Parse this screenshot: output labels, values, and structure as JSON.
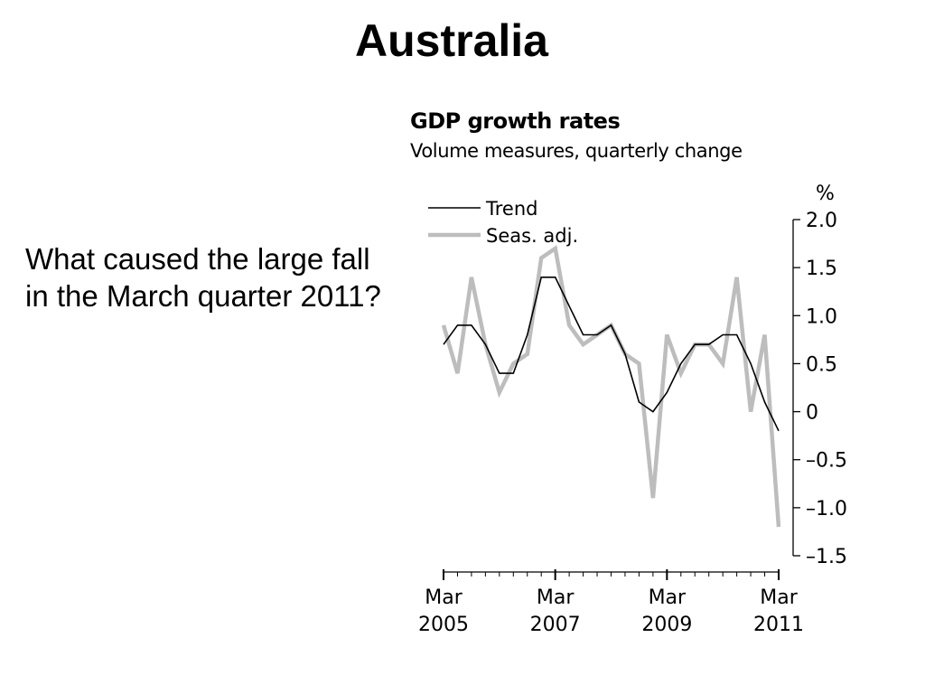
{
  "slide": {
    "title": "Australia",
    "question": "What caused the large fall in the March quarter 2011?"
  },
  "chart_data": {
    "type": "line",
    "title": "GDP growth rates",
    "subtitle": "Volume measures, quarterly change",
    "y_unit": "%",
    "ylim": [
      -1.5,
      2.0
    ],
    "y_ticks": [
      "2.0",
      "1.5",
      "1.0",
      "0.5",
      "0",
      "–0.5",
      "–1.0",
      "–1.5"
    ],
    "y_tick_values": [
      2.0,
      1.5,
      1.0,
      0.5,
      0,
      -0.5,
      -1.0,
      -1.5
    ],
    "x": [
      "Mar 2005",
      "Jun 2005",
      "Sep 2005",
      "Dec 2005",
      "Mar 2006",
      "Jun 2006",
      "Sep 2006",
      "Dec 2006",
      "Mar 2007",
      "Jun 2007",
      "Sep 2007",
      "Dec 2007",
      "Mar 2008",
      "Jun 2008",
      "Sep 2008",
      "Dec 2008",
      "Mar 2009",
      "Jun 2009",
      "Sep 2009",
      "Dec 2009",
      "Mar 2010",
      "Jun 2010",
      "Sep 2010",
      "Dec 2010",
      "Mar 2011"
    ],
    "x_tick_labels": [
      {
        "index": 0,
        "line1": "Mar",
        "line2": "2005"
      },
      {
        "index": 8,
        "line1": "Mar",
        "line2": "2007"
      },
      {
        "index": 16,
        "line1": "Mar",
        "line2": "2009"
      },
      {
        "index": 24,
        "line1": "Mar",
        "line2": "2011"
      }
    ],
    "legend": {
      "placement": "top-left"
    },
    "grid": false,
    "series": [
      {
        "name": "Trend",
        "color": "#000000",
        "values": [
          0.7,
          0.9,
          0.9,
          0.7,
          0.4,
          0.4,
          0.8,
          1.4,
          1.4,
          1.1,
          0.8,
          0.8,
          0.9,
          0.6,
          0.1,
          0.0,
          0.2,
          0.5,
          0.7,
          0.7,
          0.8,
          0.8,
          0.5,
          0.1,
          -0.2
        ]
      },
      {
        "name": "Seas. adj.",
        "color": "#bdbdbd",
        "values": [
          0.9,
          0.4,
          1.4,
          0.7,
          0.2,
          0.5,
          0.6,
          1.6,
          1.7,
          0.9,
          0.7,
          0.8,
          0.9,
          0.6,
          0.5,
          -0.9,
          0.8,
          0.4,
          0.7,
          0.7,
          0.5,
          1.4,
          0.0,
          0.8,
          -1.2
        ]
      }
    ]
  }
}
